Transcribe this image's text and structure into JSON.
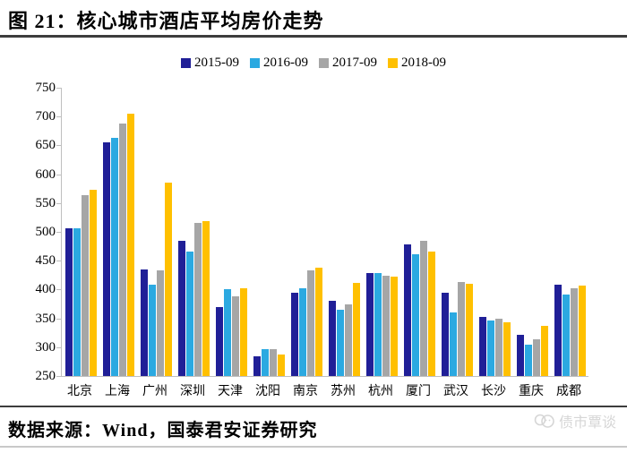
{
  "header": {
    "title": "图 21：核心城市酒店平均房价走势"
  },
  "footer": {
    "source": "数据来源：Wind，国泰君安证券研究",
    "watermark": "债市覃谈"
  },
  "colors": {
    "series": [
      "#201F97",
      "#2BA9E1",
      "#A6A6A6",
      "#FFC000"
    ],
    "axis": "#BFBFBF",
    "rule_dark": "#3D3D3D",
    "rule_light": "#C9C9C9",
    "watermark": "#D6D6D6"
  },
  "chart_data": {
    "type": "bar",
    "title": "核心城市酒店平均房价走势",
    "xlabel": "",
    "ylabel": "",
    "categories": [
      "北京",
      "上海",
      "广州",
      "深圳",
      "天津",
      "沈阳",
      "南京",
      "苏州",
      "杭州",
      "厦门",
      "武汉",
      "长沙",
      "重庆",
      "成都"
    ],
    "series": [
      {
        "name": "2015-09",
        "values": [
          506,
          656,
          435,
          484,
          370,
          284,
          395,
          380,
          429,
          478,
          394,
          352,
          322,
          408
        ]
      },
      {
        "name": "2016-09",
        "values": [
          506,
          663,
          408,
          466,
          401,
          296,
          403,
          365,
          429,
          461,
          361,
          347,
          304,
          392
        ]
      },
      {
        "name": "2017-09",
        "values": [
          564,
          688,
          433,
          515,
          388,
          297,
          434,
          374,
          424,
          484,
          413,
          350,
          313,
          402
        ]
      },
      {
        "name": "2018-09",
        "values": [
          573,
          705,
          586,
          519,
          403,
          287,
          438,
          412,
          423,
          466,
          410,
          344,
          337,
          407
        ]
      }
    ],
    "ylim": [
      250,
      750
    ],
    "yticks": [
      250,
      300,
      350,
      400,
      450,
      500,
      550,
      600,
      650,
      700,
      750
    ],
    "grid": false,
    "legend_position": "top"
  }
}
